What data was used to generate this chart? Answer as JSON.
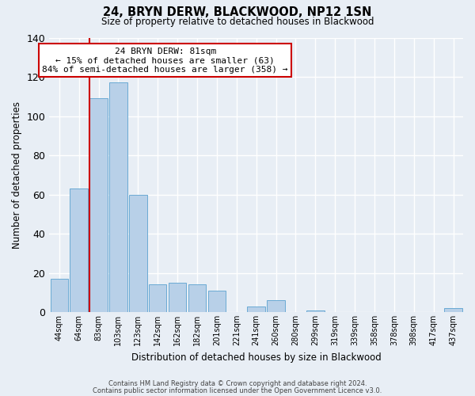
{
  "title": "24, BRYN DERW, BLACKWOOD, NP12 1SN",
  "subtitle": "Size of property relative to detached houses in Blackwood",
  "xlabel": "Distribution of detached houses by size in Blackwood",
  "ylabel": "Number of detached properties",
  "bar_labels": [
    "44sqm",
    "64sqm",
    "83sqm",
    "103sqm",
    "123sqm",
    "142sqm",
    "162sqm",
    "182sqm",
    "201sqm",
    "221sqm",
    "241sqm",
    "260sqm",
    "280sqm",
    "299sqm",
    "319sqm",
    "339sqm",
    "358sqm",
    "378sqm",
    "398sqm",
    "417sqm",
    "437sqm"
  ],
  "bar_values": [
    17,
    63,
    109,
    117,
    60,
    14,
    15,
    14,
    11,
    0,
    3,
    6,
    0,
    1,
    0,
    0,
    0,
    0,
    0,
    0,
    2
  ],
  "bar_color": "#b8d0e8",
  "bar_edge_color": "#6aaad4",
  "ylim": [
    0,
    140
  ],
  "yticks": [
    0,
    20,
    40,
    60,
    80,
    100,
    120,
    140
  ],
  "vline_color": "#cc0000",
  "annotation_title": "24 BRYN DERW: 81sqm",
  "annotation_line1": "← 15% of detached houses are smaller (63)",
  "annotation_line2": "84% of semi-detached houses are larger (358) →",
  "annotation_box_color": "#ffffff",
  "annotation_box_edge_color": "#cc0000",
  "footnote1": "Contains HM Land Registry data © Crown copyright and database right 2024.",
  "footnote2": "Contains public sector information licensed under the Open Government Licence v3.0.",
  "background_color": "#e8eef5",
  "plot_background": "#e8eef5"
}
